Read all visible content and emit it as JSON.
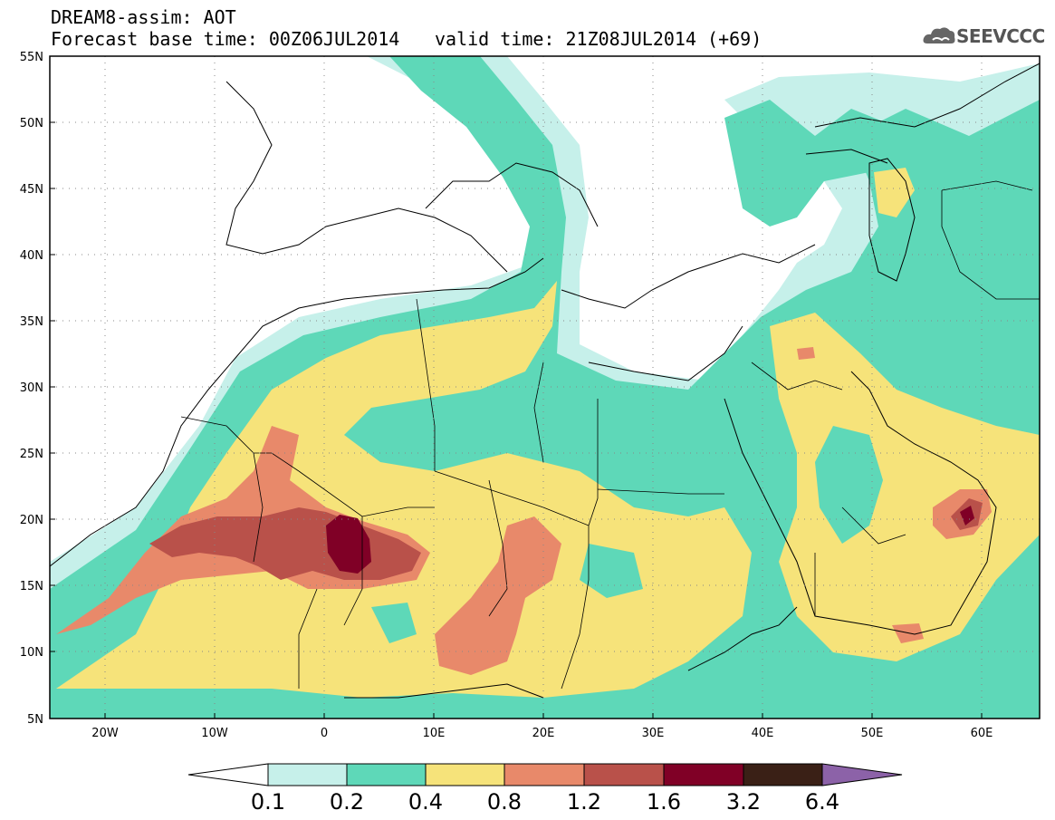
{
  "header": {
    "line1": "DREAM8-assim: AOT",
    "line2": "Forecast base time: 00Z06JUL2014",
    "valid": "valid time: 21Z08JUL2014 (+69)",
    "logo": "SEEVCCC"
  },
  "map": {
    "lat_labels": [
      "55N",
      "50N",
      "45N",
      "40N",
      "35N",
      "30N",
      "25N",
      "20N",
      "15N",
      "10N",
      "5N"
    ],
    "lon_labels": [
      "20W",
      "10W",
      "0",
      "10E",
      "20E",
      "30E",
      "40E",
      "50E",
      "60E"
    ],
    "lon_range": [
      -25,
      65
    ],
    "lat_range": [
      5,
      55
    ]
  },
  "legend": {
    "labels": [
      "0.1",
      "0.2",
      "0.4",
      "0.8",
      "1.2",
      "1.6",
      "3.2",
      "6.4"
    ],
    "colors": [
      "#ffffff",
      "#c6f0ea",
      "#5ed8b8",
      "#f6e37a",
      "#e8896a",
      "#b9514a",
      "#800026",
      "#3a2016",
      "#8c62a8"
    ]
  },
  "colors": {
    "c01": "#c6f0ea",
    "c02": "#5ed8b8",
    "c04": "#f6e37a",
    "c08": "#e8896a",
    "c12": "#b9514a",
    "c16": "#800026"
  }
}
